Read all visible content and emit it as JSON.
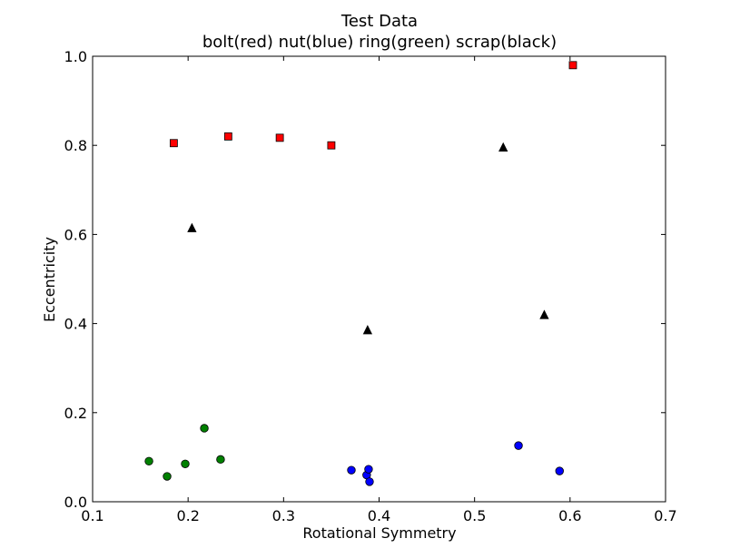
{
  "chart_data": {
    "type": "scatter",
    "title": "Test Data",
    "subtitle": "bolt(red) nut(blue) ring(green) scrap(black)",
    "xlabel": "Rotational Symmetry",
    "ylabel": "Eccentricity",
    "xlim": [
      0.1,
      0.7
    ],
    "ylim": [
      0.0,
      1.0
    ],
    "xticks": [
      "0.1",
      "0.2",
      "0.3",
      "0.4",
      "0.5",
      "0.6",
      "0.7"
    ],
    "yticks": [
      "0.0",
      "0.2",
      "0.4",
      "0.6",
      "0.8",
      "1.0"
    ],
    "grid": false,
    "series": [
      {
        "color": "#ff0000",
        "marker": "square",
        "points": [
          [
            0.185,
            0.805
          ],
          [
            0.242,
            0.82
          ],
          [
            0.296,
            0.817
          ],
          [
            0.35,
            0.8
          ],
          [
            0.603,
            0.98
          ]
        ]
      },
      {
        "color": "#0000ff",
        "marker": "circle",
        "points": [
          [
            0.371,
            0.071
          ],
          [
            0.387,
            0.06
          ],
          [
            0.389,
            0.073
          ],
          [
            0.39,
            0.045
          ],
          [
            0.546,
            0.126
          ],
          [
            0.589,
            0.069
          ]
        ]
      },
      {
        "color": "#008000",
        "marker": "circle",
        "points": [
          [
            0.159,
            0.091
          ],
          [
            0.178,
            0.057
          ],
          [
            0.197,
            0.085
          ],
          [
            0.217,
            0.165
          ],
          [
            0.234,
            0.095
          ]
        ]
      },
      {
        "color": "#000000",
        "marker": "triangle",
        "points": [
          [
            0.204,
            0.614
          ],
          [
            0.388,
            0.385
          ],
          [
            0.53,
            0.795
          ],
          [
            0.573,
            0.419
          ]
        ]
      }
    ]
  }
}
